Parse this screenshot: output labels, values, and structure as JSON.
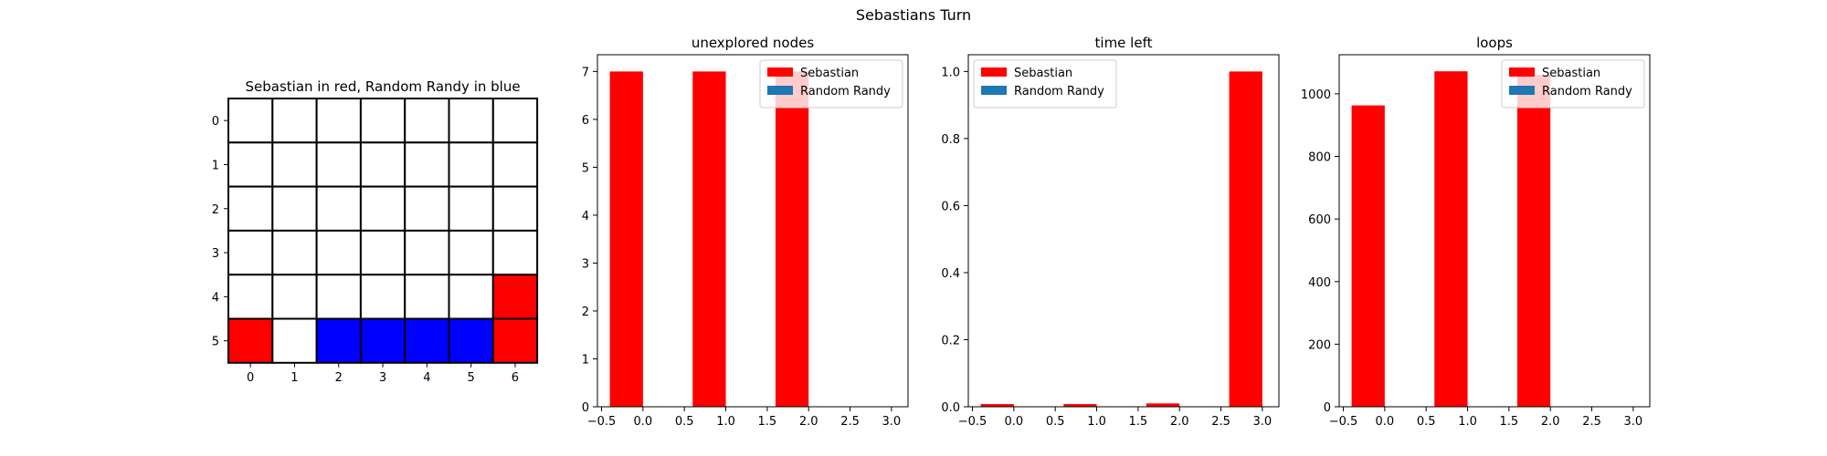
{
  "figure": {
    "suptitle": "Sebastians Turn"
  },
  "colors": {
    "sebastian": "#ff0000",
    "randy": "#1f77b4",
    "randy_cell": "#0000ff",
    "empty": "#ffffff"
  },
  "chart_data": [
    {
      "type": "heatmap",
      "title": "Sebastian in red, Random Randy in blue",
      "rows": 6,
      "cols": 7,
      "x_ticks": [
        "0",
        "1",
        "2",
        "3",
        "4",
        "5",
        "6"
      ],
      "y_ticks": [
        "0",
        "1",
        "2",
        "3",
        "4",
        "5"
      ],
      "grid": [
        [
          0,
          0,
          0,
          0,
          0,
          0,
          0
        ],
        [
          0,
          0,
          0,
          0,
          0,
          0,
          0
        ],
        [
          0,
          0,
          0,
          0,
          0,
          0,
          0
        ],
        [
          0,
          0,
          0,
          0,
          0,
          0,
          0
        ],
        [
          0,
          0,
          0,
          0,
          0,
          0,
          1
        ],
        [
          1,
          0,
          2,
          2,
          2,
          2,
          1
        ]
      ],
      "legend_values": {
        "0": "empty",
        "1": "Sebastian",
        "2": "Random Randy"
      }
    },
    {
      "type": "bar",
      "title": "unexplored nodes",
      "legend_position": "upper right",
      "xlim": [
        -0.55,
        3.2
      ],
      "ylim": [
        0,
        7.35
      ],
      "x_ticks": [
        -0.5,
        0.0,
        0.5,
        1.0,
        1.5,
        2.0,
        2.5,
        3.0
      ],
      "x_tick_labels": [
        "−0.5",
        "0.0",
        "0.5",
        "1.0",
        "1.5",
        "2.0",
        "2.5",
        "3.0"
      ],
      "y_ticks": [
        0,
        1,
        2,
        3,
        4,
        5,
        6,
        7
      ],
      "y_tick_labels": [
        "0",
        "1",
        "2",
        "3",
        "4",
        "5",
        "6",
        "7"
      ],
      "series": [
        {
          "name": "Sebastian",
          "color": "#ff0000",
          "x": [
            0,
            1,
            2
          ],
          "values": [
            7,
            7,
            7
          ]
        },
        {
          "name": "Random Randy",
          "color": "#1f77b4",
          "x": [],
          "values": []
        }
      ]
    },
    {
      "type": "bar",
      "title": "time left",
      "legend_position": "upper left",
      "xlim": [
        -0.55,
        3.2
      ],
      "ylim": [
        0,
        1.05
      ],
      "x_ticks": [
        -0.5,
        0.0,
        0.5,
        1.0,
        1.5,
        2.0,
        2.5,
        3.0
      ],
      "x_tick_labels": [
        "−0.5",
        "0.0",
        "0.5",
        "1.0",
        "1.5",
        "2.0",
        "2.5",
        "3.0"
      ],
      "y_ticks": [
        0,
        0.2,
        0.4,
        0.6,
        0.8,
        1.0
      ],
      "y_tick_labels": [
        "0.0",
        "0.2",
        "0.4",
        "0.6",
        "0.8",
        "1.0"
      ],
      "series": [
        {
          "name": "Sebastian",
          "color": "#ff0000",
          "x": [
            0,
            1,
            2,
            3
          ],
          "values": [
            0.008,
            0.008,
            0.01,
            1.0
          ]
        },
        {
          "name": "Random Randy",
          "color": "#1f77b4",
          "x": [],
          "values": []
        }
      ]
    },
    {
      "type": "bar",
      "title": "loops",
      "legend_position": "upper right",
      "xlim": [
        -0.55,
        3.2
      ],
      "ylim": [
        0,
        1125
      ],
      "x_ticks": [
        -0.5,
        0.0,
        0.5,
        1.0,
        1.5,
        2.0,
        2.5,
        3.0
      ],
      "x_tick_labels": [
        "−0.5",
        "0.0",
        "0.5",
        "1.0",
        "1.5",
        "2.0",
        "2.5",
        "3.0"
      ],
      "y_ticks": [
        0,
        200,
        400,
        600,
        800,
        1000
      ],
      "y_tick_labels": [
        "0",
        "200",
        "400",
        "600",
        "800",
        "1000"
      ],
      "series": [
        {
          "name": "Sebastian",
          "color": "#ff0000",
          "x": [
            0,
            1,
            2
          ],
          "values": [
            963,
            1072,
            1060
          ]
        },
        {
          "name": "Random Randy",
          "color": "#1f77b4",
          "x": [],
          "values": []
        }
      ]
    }
  ]
}
